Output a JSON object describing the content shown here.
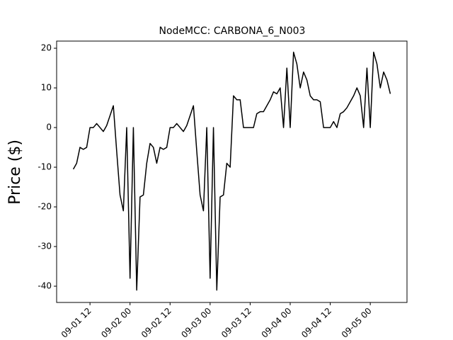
{
  "chart_data": {
    "type": "line",
    "title": "NodeMCC: CARBONA_6_N003",
    "y_label": "Price ($)",
    "x": [
      "09-01 07",
      "09-01 08",
      "09-01 09",
      "09-01 10",
      "09-01 11",
      "09-01 12",
      "09-01 13",
      "09-01 14",
      "09-01 15",
      "09-01 16",
      "09-01 17",
      "09-01 18",
      "09-01 19",
      "09-01 20",
      "09-01 21",
      "09-01 22",
      "09-01 23",
      "09-02 00",
      "09-02 01",
      "09-02 02",
      "09-02 03",
      "09-02 04",
      "09-02 05",
      "09-02 06",
      "09-02 07",
      "09-02 08",
      "09-02 09",
      "09-02 10",
      "09-02 11",
      "09-02 12",
      "09-02 13",
      "09-02 14",
      "09-02 15",
      "09-02 16",
      "09-02 17",
      "09-02 18",
      "09-02 19",
      "09-02 20",
      "09-02 21",
      "09-02 22",
      "09-02 23",
      "09-03 00",
      "09-03 01",
      "09-03 02",
      "09-03 03",
      "09-03 04",
      "09-03 05",
      "09-03 06",
      "09-03 07",
      "09-03 08",
      "09-03 09",
      "09-03 10",
      "09-03 11",
      "09-03 12",
      "09-03 13",
      "09-03 14",
      "09-03 15",
      "09-03 16",
      "09-03 17",
      "09-03 18",
      "09-03 19",
      "09-03 20",
      "09-03 21",
      "09-03 22",
      "09-03 23",
      "09-04 00",
      "09-04 01",
      "09-04 02",
      "09-04 03",
      "09-04 04",
      "09-04 05",
      "09-04 06",
      "09-04 07",
      "09-04 08",
      "09-04 09",
      "09-04 10",
      "09-04 11",
      "09-04 12",
      "09-04 13",
      "09-04 14",
      "09-04 15",
      "09-04 16",
      "09-04 17",
      "09-04 18",
      "09-04 19",
      "09-04 20",
      "09-04 21",
      "09-04 22",
      "09-04 23",
      "09-05 00",
      "09-05 01",
      "09-05 02",
      "09-05 03",
      "09-05 04",
      "09-05 05",
      "09-05 06"
    ],
    "series": [
      {
        "color": "#000000",
        "values": [
          -10.5,
          -9,
          -5,
          -5.5,
          -5,
          0,
          0,
          1,
          0,
          -1,
          0.5,
          3,
          5.5,
          -6,
          -17,
          -21,
          0,
          -38,
          0,
          -41,
          -17.5,
          -17,
          -9,
          -4,
          -5,
          -9,
          -5,
          -5.5,
          -5,
          0,
          0,
          1,
          0,
          -1,
          0.5,
          3,
          5.5,
          -6,
          -17,
          -21,
          0,
          -38,
          0,
          -41,
          -17.5,
          -17,
          -9,
          -10,
          8,
          7,
          7,
          0,
          0,
          0,
          0,
          3.5,
          4,
          4,
          5.5,
          7,
          9,
          8.5,
          10,
          0,
          15,
          0,
          19,
          16,
          10,
          14,
          12,
          8,
          7,
          7,
          6.5,
          0,
          0,
          0,
          1.5,
          0,
          3.5,
          4,
          5,
          6.5,
          8,
          10,
          8,
          0,
          15,
          0,
          19,
          16,
          10,
          14,
          12,
          8.5
        ]
      }
    ],
    "xlim": [
      "09-01 02",
      "09-05 11"
    ],
    "xticks": [
      "09-01 12",
      "09-02 00",
      "09-02 12",
      "09-03 00",
      "09-03 12",
      "09-04 00",
      "09-04 12",
      "09-05 00"
    ],
    "ylim": [
      -44.1,
      21.8
    ],
    "yticks": [
      -40,
      -30,
      -20,
      -10,
      0,
      10,
      20
    ]
  }
}
